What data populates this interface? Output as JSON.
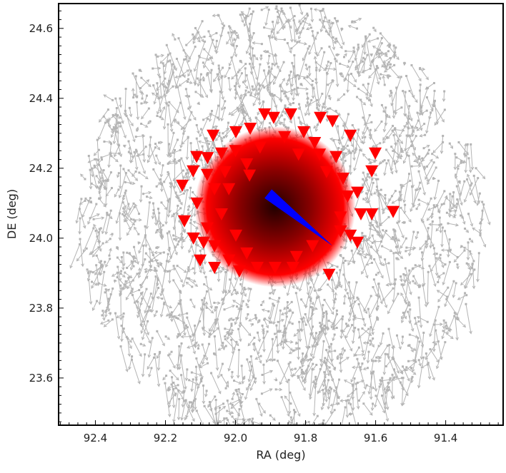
{
  "chart_data": {
    "type": "scatter",
    "title": "",
    "xlabel": "RA (deg)",
    "ylabel": "DE (deg)",
    "xlim": [
      92.505,
      91.236
    ],
    "ylim": [
      23.465,
      24.671
    ],
    "x_reversed": true,
    "grid": false,
    "xticks": [
      92.4,
      92.2,
      92.0,
      91.8,
      91.6,
      91.4
    ],
    "xtick_labels": [
      "92.4",
      "92.2",
      "92.0",
      "91.8",
      "91.6",
      "91.4"
    ],
    "yticks": [
      23.6,
      23.8,
      24.0,
      24.2,
      24.4,
      24.6
    ],
    "ytick_labels": [
      "23.6",
      "23.8",
      "24.0",
      "24.2",
      "24.4",
      "24.6"
    ],
    "colors": {
      "field": "#b4b4b4",
      "members": "#ff0000",
      "mean_motion": "#0000ff",
      "density_core": "#200000"
    },
    "field_stars": {
      "marker": "arrow",
      "approx_count": 1800,
      "center": [
        91.87,
        24.06
      ],
      "radius_deg": 0.58,
      "mean_motion_deg": [
        0.0,
        -0.05
      ]
    },
    "member_density_core": {
      "center": [
        91.887,
        24.09
      ],
      "radius_deg": 0.2
    },
    "members": {
      "marker": "triangle-down",
      "points": [
        [
          91.917,
          24.355
        ],
        [
          91.842,
          24.355
        ],
        [
          91.891,
          24.345
        ],
        [
          91.758,
          24.345
        ],
        [
          91.723,
          24.335
        ],
        [
          92.064,
          24.294
        ],
        [
          91.999,
          24.304
        ],
        [
          91.958,
          24.314
        ],
        [
          91.805,
          24.304
        ],
        [
          91.672,
          24.294
        ],
        [
          92.111,
          24.233
        ],
        [
          92.04,
          24.243
        ],
        [
          91.601,
          24.243
        ],
        [
          91.611,
          24.192
        ],
        [
          92.152,
          24.151
        ],
        [
          92.081,
          24.182
        ],
        [
          92.06,
          24.141
        ],
        [
          91.652,
          24.131
        ],
        [
          91.642,
          24.069
        ],
        [
          91.611,
          24.069
        ],
        [
          91.55,
          24.076
        ],
        [
          92.146,
          24.049
        ],
        [
          92.081,
          24.029
        ],
        [
          92.091,
          23.988
        ],
        [
          92.06,
          23.978
        ],
        [
          91.652,
          23.988
        ],
        [
          92.101,
          23.937
        ],
        [
          92.06,
          23.916
        ],
        [
          91.989,
          23.906
        ],
        [
          91.938,
          23.916
        ],
        [
          91.887,
          23.916
        ],
        [
          91.836,
          23.916
        ],
        [
          91.733,
          23.896
        ],
        [
          91.672,
          24.008
        ],
        [
          92.121,
          24.192
        ],
        [
          92.019,
          24.141
        ],
        [
          91.968,
          24.212
        ],
        [
          91.774,
          24.273
        ],
        [
          91.713,
          24.233
        ],
        [
          91.693,
          24.171
        ],
        [
          92.04,
          24.069
        ],
        [
          91.999,
          24.008
        ],
        [
          92.019,
          23.937
        ],
        [
          91.968,
          23.957
        ],
        [
          91.826,
          23.947
        ],
        [
          91.78,
          23.978
        ],
        [
          91.76,
          24.24
        ],
        [
          91.82,
          24.24
        ],
        [
          91.93,
          24.26
        ],
        [
          92.0,
          24.25
        ],
        [
          92.08,
          24.23
        ],
        [
          92.11,
          24.1
        ],
        [
          92.12,
          24.0
        ],
        [
          91.7,
          24.06
        ],
        [
          91.68,
          24.12
        ],
        [
          91.74,
          24.19
        ],
        [
          91.86,
          24.29
        ],
        [
          91.96,
          24.18
        ],
        [
          91.7,
          24.02
        ],
        [
          92.03,
          24.19
        ]
      ]
    },
    "mean_motion_vector": {
      "from": [
        91.907,
        24.127
      ],
      "to": [
        91.723,
        23.978
      ]
    }
  }
}
